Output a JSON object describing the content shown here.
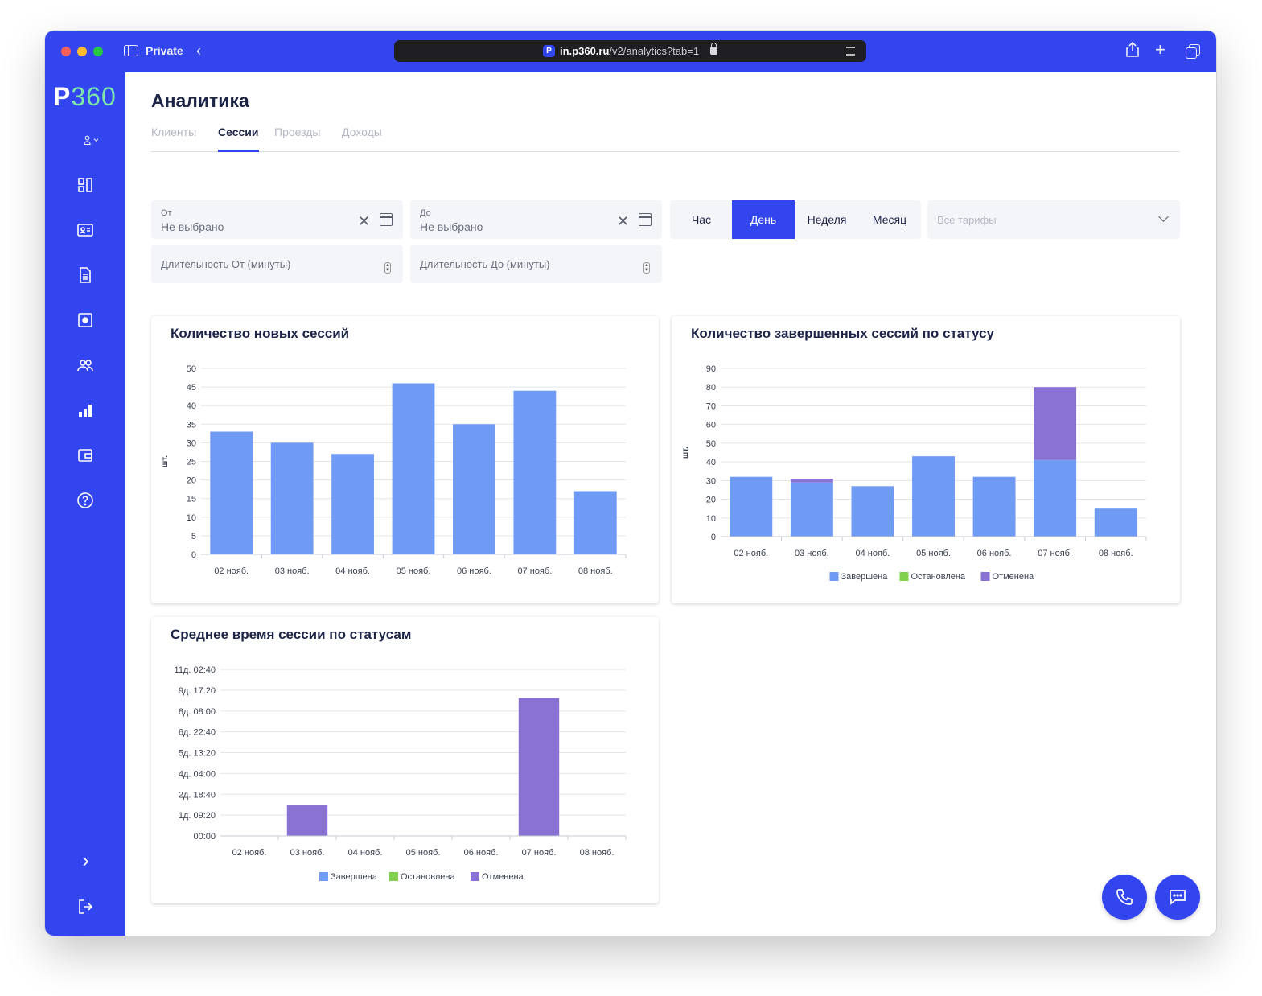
{
  "browser": {
    "private_label": "Private",
    "url_host": "in.p360.ru",
    "url_path": "/v2/analytics?tab=1"
  },
  "sidebar": {
    "logo_letter": "P",
    "logo_digits": "360",
    "items": [
      {
        "icon": "location-user-icon"
      },
      {
        "icon": "dashboard-icon"
      },
      {
        "icon": "id-card-icon"
      },
      {
        "icon": "document-icon"
      },
      {
        "icon": "settings-box-icon"
      },
      {
        "icon": "users-icon"
      },
      {
        "icon": "analytics-icon"
      },
      {
        "icon": "wallet-icon"
      },
      {
        "icon": "help-icon"
      },
      {
        "icon": "expand-icon"
      },
      {
        "icon": "logout-icon"
      }
    ]
  },
  "page": {
    "title": "Аналитика",
    "tabs": [
      {
        "label": "Клиенты",
        "active": false
      },
      {
        "label": "Сессии",
        "active": true
      },
      {
        "label": "Проезды",
        "active": false
      },
      {
        "label": "Доходы",
        "active": false
      }
    ]
  },
  "filters": {
    "from": {
      "label": "От",
      "value": "Не выбрано"
    },
    "to": {
      "label": "До",
      "value": "Не выбрано"
    },
    "duration_from_placeholder": "Длительность От (минуты)",
    "duration_to_placeholder": "Длительность До (минуты)",
    "periods": [
      "Час",
      "День",
      "Неделя",
      "Месяц"
    ],
    "active_period": "День",
    "tariff_placeholder": "Все тарифы"
  },
  "colors": {
    "accent": "#3345ef",
    "completed": "#6f9bf5",
    "stopped": "#7fd14e",
    "cancelled": "#8a72d4",
    "grid": "#e3e5ea"
  },
  "chart_data": [
    {
      "type": "bar",
      "title": "Количество новых сессий",
      "ylabel": "шт.",
      "categories": [
        "02 нояб.",
        "03 нояб.",
        "04 нояб.",
        "05 нояб.",
        "06 нояб.",
        "07 нояб.",
        "08 нояб."
      ],
      "values": [
        33,
        30,
        27,
        46,
        35,
        44,
        17
      ],
      "ylim": [
        0,
        50
      ],
      "yticks": [
        "0",
        "5",
        "10",
        "15",
        "20",
        "25",
        "30",
        "35",
        "40",
        "45",
        "50"
      ],
      "grid": true
    },
    {
      "type": "bar",
      "stacked": true,
      "title": "Количество завершенных сессий по статусу",
      "ylabel": "шт.",
      "categories": [
        "02 нояб.",
        "03 нояб.",
        "04 нояб.",
        "05 нояб.",
        "06 нояб.",
        "07 нояб.",
        "08 нояб."
      ],
      "series": [
        {
          "name": "Завершена",
          "values": [
            32,
            29,
            27,
            43,
            32,
            41,
            15
          ]
        },
        {
          "name": "Остановлена",
          "values": [
            0,
            0,
            0,
            0,
            0,
            0,
            0
          ]
        },
        {
          "name": "Отменена",
          "values": [
            0,
            2,
            0,
            0,
            0,
            39,
            0
          ]
        }
      ],
      "ylim": [
        0,
        90
      ],
      "yticks": [
        "0",
        "10",
        "20",
        "30",
        "40",
        "50",
        "60",
        "70",
        "80",
        "90"
      ],
      "legend": "bottom",
      "grid": true
    },
    {
      "type": "bar",
      "title": "Среднее время сессии по статусам",
      "categories": [
        "02 нояб.",
        "03 нояб.",
        "04 нояб.",
        "05 нояб.",
        "06 нояб.",
        "07 нояб.",
        "08 нояб."
      ],
      "yunit": "minutes",
      "series": [
        {
          "name": "Завершена",
          "values": [
            0,
            0,
            0,
            0,
            0,
            0,
            0
          ]
        },
        {
          "name": "Остановлена",
          "values": [
            0,
            0,
            0,
            0,
            0,
            0,
            0
          ]
        },
        {
          "name": "Отменена",
          "values": [
            0,
            3000,
            0,
            0,
            0,
            13250,
            0
          ]
        }
      ],
      "ylim": [
        0,
        16000
      ],
      "yticks": [
        "00:00",
        "1д. 09:20",
        "2д. 18:40",
        "4д. 04:00",
        "5д. 13:20",
        "6д. 22:40",
        "8д. 08:00",
        "9д. 17:20",
        "11д. 02:40"
      ],
      "legend": "bottom",
      "grid": true
    }
  ]
}
